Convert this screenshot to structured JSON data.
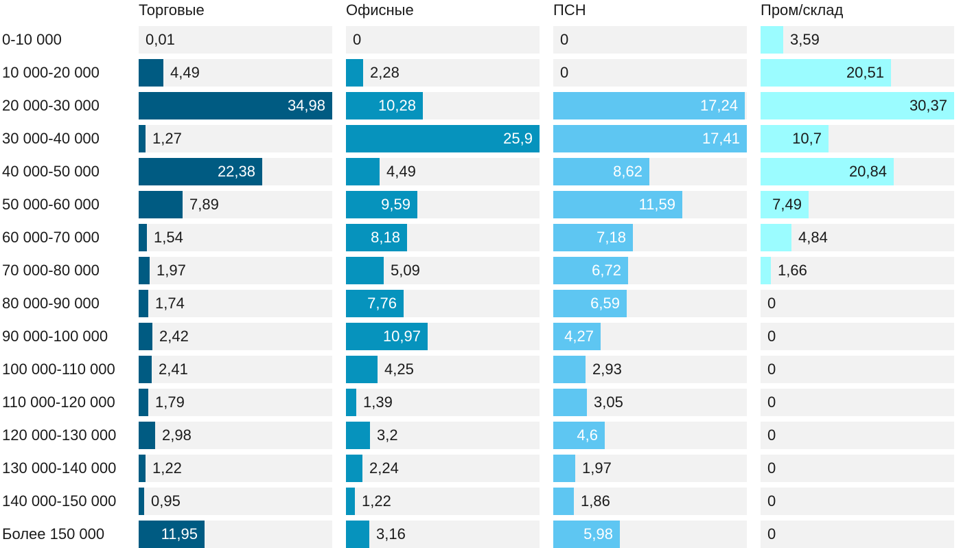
{
  "chart_data": {
    "type": "bar",
    "orientation": "horizontal",
    "layout": "small-multiples",
    "categories": [
      "0-10 000",
      "10 000-20 000",
      "20 000-30 000",
      "30 000-40 000",
      "40 000-50 000",
      "50 000-60 000",
      "60 000-70 000",
      "70 000-80 000",
      "80 000-90 000",
      "90 000-100 000",
      "100 000-110 000",
      "110 000-120 000",
      "120 000-130 000",
      "130 000-140 000",
      "140 000-150 000",
      "Более 150 000"
    ],
    "series": [
      {
        "name": "Торговые",
        "color": "#005b82",
        "max": 34.98,
        "values": [
          0.01,
          4.49,
          34.98,
          1.27,
          22.38,
          7.89,
          1.54,
          1.97,
          1.74,
          2.42,
          2.41,
          1.79,
          2.98,
          1.22,
          0.95,
          11.95
        ],
        "labels": [
          "0,01",
          "4,49",
          "34,98",
          "1,27",
          "22,38",
          "7,89",
          "1,54",
          "1,97",
          "1,74",
          "2,42",
          "2,41",
          "1,79",
          "2,98",
          "1,22",
          "0,95",
          "11,95"
        ]
      },
      {
        "name": "Офисные",
        "color": "#0693bd",
        "max": 25.9,
        "values": [
          0,
          2.28,
          10.28,
          25.9,
          4.49,
          9.59,
          8.18,
          5.09,
          7.76,
          10.97,
          4.25,
          1.39,
          3.2,
          2.24,
          1.22,
          3.16
        ],
        "labels": [
          "0",
          "2,28",
          "10,28",
          "25,9",
          "4,49",
          "9,59",
          "8,18",
          "5,09",
          "7,76",
          "10,97",
          "4,25",
          "1,39",
          "3,2",
          "2,24",
          "1,22",
          "3,16"
        ]
      },
      {
        "name": "ПСН",
        "color": "#5ec6f2",
        "max": 17.41,
        "values": [
          0,
          0,
          17.24,
          17.41,
          8.62,
          11.59,
          7.18,
          6.72,
          6.59,
          4.27,
          2.93,
          3.05,
          4.6,
          1.97,
          1.86,
          5.98
        ],
        "labels": [
          "0",
          "0",
          "17,24",
          "17,41",
          "8,62",
          "11,59",
          "7,18",
          "6,72",
          "6,59",
          "4,27",
          "2,93",
          "3,05",
          "4,6",
          "1,97",
          "1,86",
          "5,98"
        ]
      },
      {
        "name": "Пром/склад",
        "color": "#9bfcff",
        "max": 30.37,
        "values": [
          3.59,
          20.51,
          30.37,
          10.7,
          20.84,
          7.49,
          4.84,
          1.66,
          0,
          0,
          0,
          0,
          0,
          0,
          0,
          0
        ],
        "labels": [
          "3,59",
          "20,51",
          "30,37",
          "10,7",
          "20,84",
          "7,49",
          "4,84",
          "1,66",
          "0",
          "0",
          "0",
          "0",
          "0",
          "0",
          "0",
          "0"
        ]
      }
    ]
  }
}
